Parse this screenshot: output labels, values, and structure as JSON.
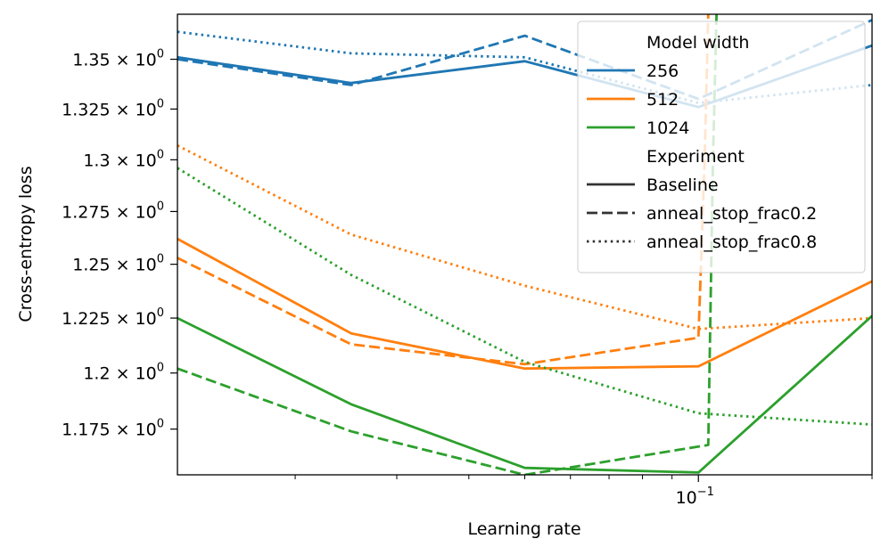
{
  "chart_data": {
    "type": "line",
    "title": "",
    "xlabel": "Learning rate",
    "ylabel": "Cross-entropy loss",
    "xscale": "log",
    "yscale": "log",
    "xlim": [
      0.0125,
      0.2
    ],
    "ylim": [
      1.155,
      1.373
    ],
    "x": [
      0.0125,
      0.025,
      0.05,
      0.1,
      0.2
    ],
    "x_major_ticks": [
      {
        "value": 0.1,
        "base": "10",
        "exp": "−1"
      }
    ],
    "x_minor_ticks": [
      0.02,
      0.03,
      0.04,
      0.05,
      0.06,
      0.07,
      0.08,
      0.09,
      0.2
    ],
    "y_ticks": [
      {
        "value": 1.175,
        "mantissa": "1.175"
      },
      {
        "value": 1.2,
        "mantissa": "1.2"
      },
      {
        "value": 1.225,
        "mantissa": "1.225"
      },
      {
        "value": 1.25,
        "mantissa": "1.25"
      },
      {
        "value": 1.275,
        "mantissa": "1.275"
      },
      {
        "value": 1.3,
        "mantissa": "1.3"
      },
      {
        "value": 1.325,
        "mantissa": "1.325"
      },
      {
        "value": 1.35,
        "mantissa": "1.35"
      }
    ],
    "y_tick_suffix": "× 10",
    "y_tick_exp": "0",
    "colors": {
      "256": "#1f77b4",
      "512": "#ff7f0e",
      "1024": "#2ca02c"
    },
    "series": [
      {
        "width": "256",
        "experiment": "Baseline",
        "x": [
          0.0125,
          0.025,
          0.05,
          0.1,
          0.2
        ],
        "values": [
          1.351,
          1.338,
          1.349,
          1.326,
          1.357
        ]
      },
      {
        "width": "256",
        "experiment": "anneal_stop_frac0.2",
        "x": [
          0.0125,
          0.025,
          0.05,
          0.1,
          0.2
        ],
        "values": [
          1.35,
          1.337,
          1.362,
          1.33,
          1.37
        ]
      },
      {
        "width": "256",
        "experiment": "anneal_stop_frac0.8",
        "x": [
          0.0125,
          0.025,
          0.05,
          0.1,
          0.2
        ],
        "values": [
          1.364,
          1.353,
          1.351,
          1.328,
          1.337
        ]
      },
      {
        "width": "512",
        "experiment": "Baseline",
        "x": [
          0.0125,
          0.025,
          0.05,
          0.1,
          0.2
        ],
        "values": [
          1.262,
          1.218,
          1.202,
          1.203,
          1.242
        ]
      },
      {
        "width": "512",
        "experiment": "anneal_stop_frac0.2",
        "x": [
          0.0125,
          0.025,
          0.05,
          0.1,
          0.1025,
          0.104
        ],
        "values": [
          1.253,
          1.213,
          1.204,
          1.216,
          1.3,
          1.373
        ]
      },
      {
        "width": "512",
        "experiment": "anneal_stop_frac0.8",
        "x": [
          0.0125,
          0.025,
          0.05,
          0.1,
          0.2
        ],
        "values": [
          1.307,
          1.264,
          1.24,
          1.22,
          1.225
        ]
      },
      {
        "width": "1024",
        "experiment": "Baseline",
        "x": [
          0.0125,
          0.025,
          0.05,
          0.1,
          0.2
        ],
        "values": [
          1.225,
          1.186,
          1.158,
          1.156,
          1.226
        ]
      },
      {
        "width": "1024",
        "experiment": "anneal_stop_frac0.2",
        "x": [
          0.0125,
          0.025,
          0.05,
          0.104,
          0.106,
          0.1075
        ],
        "values": [
          1.202,
          1.174,
          1.155,
          1.168,
          1.3,
          1.373
        ]
      },
      {
        "width": "1024",
        "experiment": "anneal_stop_frac0.8",
        "x": [
          0.0125,
          0.025,
          0.05,
          0.1,
          0.2
        ],
        "values": [
          1.296,
          1.245,
          1.205,
          1.182,
          1.177
        ]
      }
    ],
    "legend": {
      "placement": "top-right",
      "width_title": "Model width",
      "width_entries": [
        "256",
        "512",
        "1024"
      ],
      "experiment_title": "Experiment",
      "experiment_entries": [
        {
          "label": "Baseline",
          "style": "solid"
        },
        {
          "label": "anneal_stop_frac0.2",
          "style": "dashed"
        },
        {
          "label": "anneal_stop_frac0.8",
          "style": "dotted"
        }
      ]
    }
  }
}
